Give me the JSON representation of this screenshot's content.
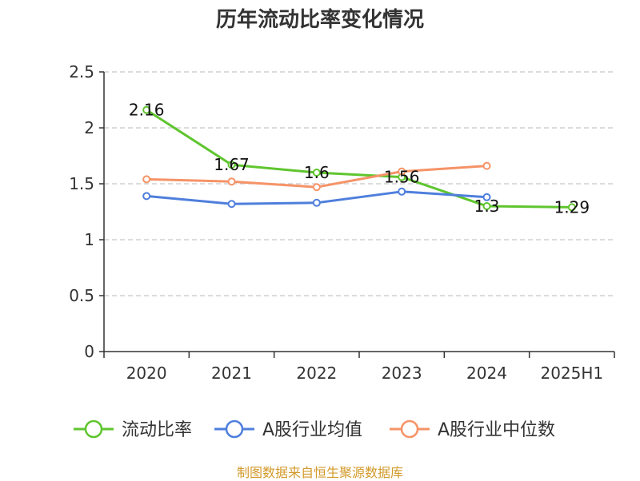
{
  "title": "历年流动比率变化情况",
  "source": "制图数据来自恒生聚源数据库",
  "chart_data": {
    "type": "line",
    "categories": [
      "2020",
      "2021",
      "2022",
      "2023",
      "2024",
      "2025H1"
    ],
    "ylim": [
      0,
      2.5
    ],
    "yticks": [
      "0",
      "0.5",
      "1",
      "1.5",
      "2",
      "2.5"
    ],
    "grid": true,
    "legend_position": "bottom",
    "series": [
      {
        "name": "流动比率",
        "color": "#5fc52e",
        "values": [
          2.16,
          1.67,
          1.6,
          1.56,
          1.3,
          1.29
        ],
        "labels": [
          "2.16",
          "1.67",
          "1.6",
          "1.56",
          "1.3",
          "1.29"
        ]
      },
      {
        "name": "A股行业均值",
        "color": "#4f7fdc",
        "values": [
          1.39,
          1.32,
          1.33,
          1.43,
          1.38,
          null
        ]
      },
      {
        "name": "A股行业中位数",
        "color": "#f59367",
        "values": [
          1.54,
          1.52,
          1.47,
          1.61,
          1.66,
          null
        ]
      }
    ]
  }
}
